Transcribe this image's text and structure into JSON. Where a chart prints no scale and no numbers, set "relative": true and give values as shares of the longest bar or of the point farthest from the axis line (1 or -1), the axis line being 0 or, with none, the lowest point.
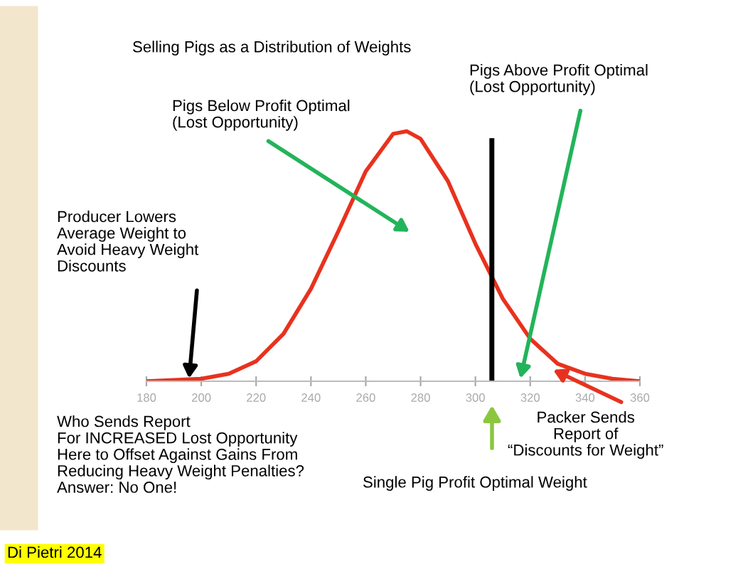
{
  "chart_data": {
    "type": "line",
    "title": "Selling Pigs as a Distribution of Weights",
    "relative": true,
    "x": [
      180,
      190,
      200,
      210,
      220,
      230,
      240,
      250,
      260,
      270,
      275,
      280,
      290,
      300,
      310,
      320,
      330,
      340,
      350,
      360
    ],
    "series": [
      {
        "color": "#e8321e",
        "values": [
          0,
          0.005,
          0.01,
          0.03,
          0.08,
          0.19,
          0.37,
          0.6,
          0.84,
          0.99,
          1.0,
          0.97,
          0.8,
          0.55,
          0.33,
          0.17,
          0.07,
          0.03,
          0.01,
          0
        ]
      }
    ],
    "xlim": [
      180,
      360
    ],
    "xticks": [
      180,
      200,
      220,
      240,
      260,
      280,
      300,
      320,
      340,
      360
    ],
    "ref_lines": [
      {
        "axis": "x",
        "value": 306,
        "label": "Single Pig Profit Optimal Weight",
        "color": "#000000",
        "line_style": "solid"
      }
    ],
    "annotations": [
      "Pigs Above Profit Optimal\n(Lost Opportunity)",
      "Pigs Below Profit Optimal\n(Lost Opportunity)",
      "Producer Lowers\nAverage Weight to\nAvoid Heavy Weight\nDiscounts",
      "Who Sends Report\nFor INCREASED Lost Opportunity\nHere to Offset Against Gains From\nReducing Heavy Weight Penalties?\nAnswer: No One!",
      "Packer Sends\nReport of\n“Discounts for Weight”",
      "Di Pietri 2014"
    ],
    "grid": false,
    "legend": false,
    "marker": "none",
    "line_style": "solid",
    "tick_labels": "x"
  }
}
